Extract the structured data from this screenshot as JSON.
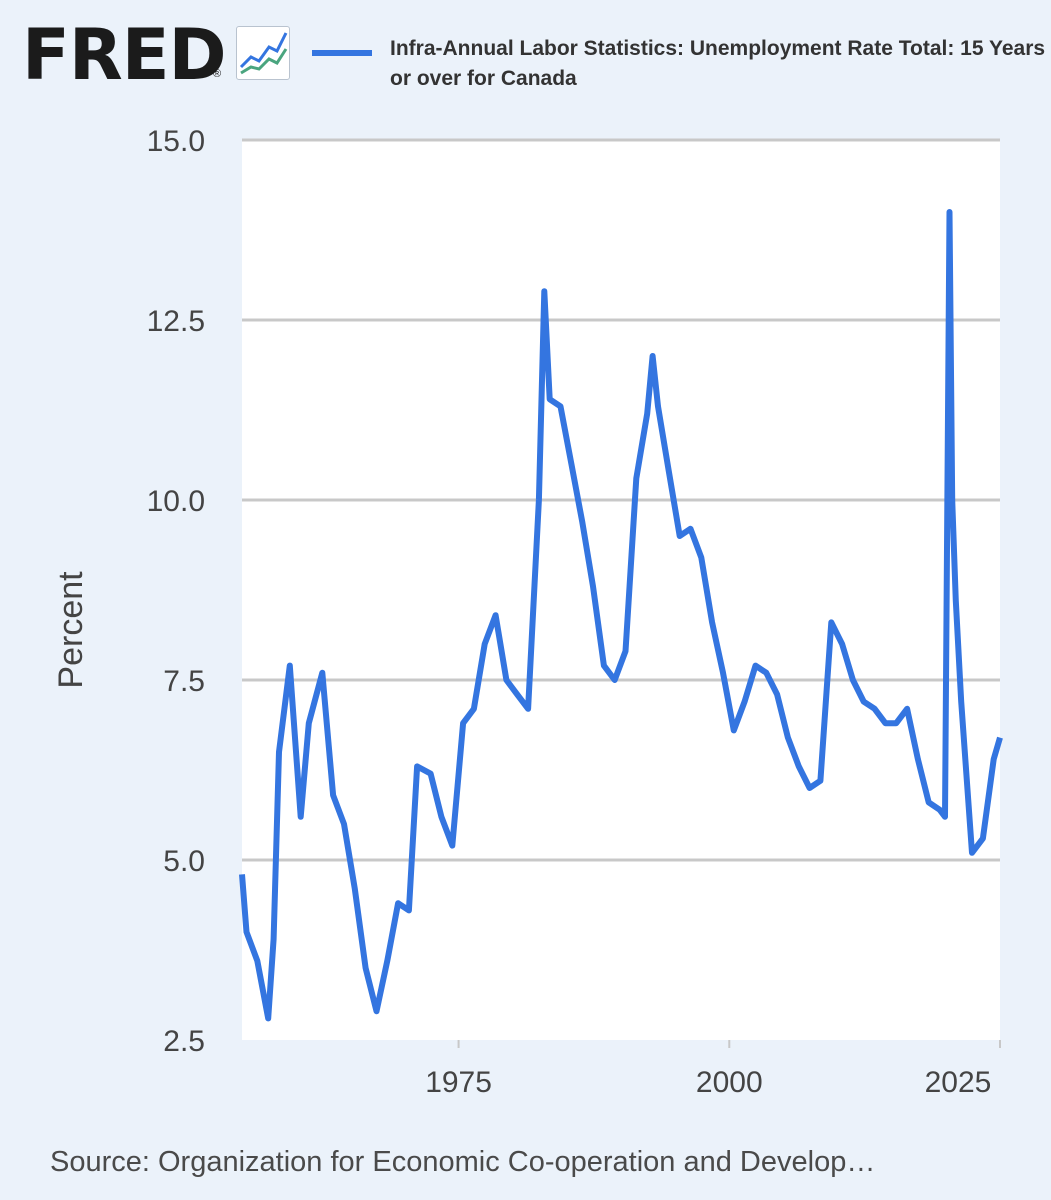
{
  "header": {
    "logo_text": "FRED",
    "logo_mark": "®",
    "logo_icon": "line-graph-icon"
  },
  "source_note": "Source: Organization for Economic Co-operation and Develop…",
  "colors": {
    "background": "#ebf2fa",
    "plot_background": "#ffffff",
    "series": "#3475e0",
    "gridline": "#c8c8c8"
  },
  "chart_data": {
    "type": "line",
    "legend": "top",
    "grid": true,
    "ylabel": "Percent",
    "xlabel": "",
    "ylim": [
      2.5,
      15.0
    ],
    "xlim": [
      "1955-01",
      "2025-01"
    ],
    "yticks": [
      "15.0",
      "12.5",
      "10.0",
      "7.5",
      "5.0",
      "2.5"
    ],
    "xticks": [
      "1975",
      "2000",
      "2025"
    ],
    "series": [
      {
        "name": "Infra-Annual Labor Statistics: Unemployment Rate Total: 15 Years or over for Canada",
        "x": [
          "1955-01",
          "1955-06",
          "1956-06",
          "1957-06",
          "1957-12",
          "1958-06",
          "1959-06",
          "1960-06",
          "1961-03",
          "1962-06",
          "1963-06",
          "1964-06",
          "1965-06",
          "1966-06",
          "1967-06",
          "1968-06",
          "1969-06",
          "1970-06",
          "1971-03",
          "1972-06",
          "1973-06",
          "1974-06",
          "1975-06",
          "1976-06",
          "1977-06",
          "1978-06",
          "1979-06",
          "1980-06",
          "1981-06",
          "1982-06",
          "1982-12",
          "1983-06",
          "1984-06",
          "1985-06",
          "1986-06",
          "1987-06",
          "1988-06",
          "1989-06",
          "1990-06",
          "1991-06",
          "1992-06",
          "1992-12",
          "1993-06",
          "1994-06",
          "1995-06",
          "1996-06",
          "1997-06",
          "1998-06",
          "1999-06",
          "2000-06",
          "2001-06",
          "2002-06",
          "2003-06",
          "2004-06",
          "2005-06",
          "2006-06",
          "2007-06",
          "2008-06",
          "2009-06",
          "2010-06",
          "2011-06",
          "2012-06",
          "2013-06",
          "2014-06",
          "2015-06",
          "2016-06",
          "2017-06",
          "2018-06",
          "2019-06",
          "2019-12",
          "2020-05",
          "2020-08",
          "2020-12",
          "2021-06",
          "2022-06",
          "2023-06",
          "2024-06",
          "2025-01"
        ],
        "values": [
          4.8,
          4.0,
          3.6,
          2.8,
          3.9,
          6.5,
          7.7,
          5.6,
          6.9,
          7.6,
          5.9,
          5.5,
          4.6,
          3.5,
          2.9,
          3.6,
          4.4,
          4.3,
          6.3,
          6.2,
          5.6,
          5.2,
          6.9,
          7.1,
          8.0,
          8.4,
          7.5,
          7.3,
          7.1,
          10.0,
          12.9,
          11.4,
          11.3,
          10.5,
          9.7,
          8.8,
          7.7,
          7.5,
          7.9,
          10.3,
          11.2,
          12.0,
          11.3,
          10.4,
          9.5,
          9.6,
          9.2,
          8.3,
          7.6,
          6.8,
          7.2,
          7.7,
          7.6,
          7.3,
          6.7,
          6.3,
          6.0,
          6.1,
          8.3,
          8.0,
          7.5,
          7.2,
          7.1,
          6.9,
          6.9,
          7.1,
          6.4,
          5.8,
          5.7,
          5.6,
          14.0,
          10.0,
          8.6,
          7.2,
          5.1,
          5.3,
          6.4,
          6.7
        ]
      }
    ]
  }
}
